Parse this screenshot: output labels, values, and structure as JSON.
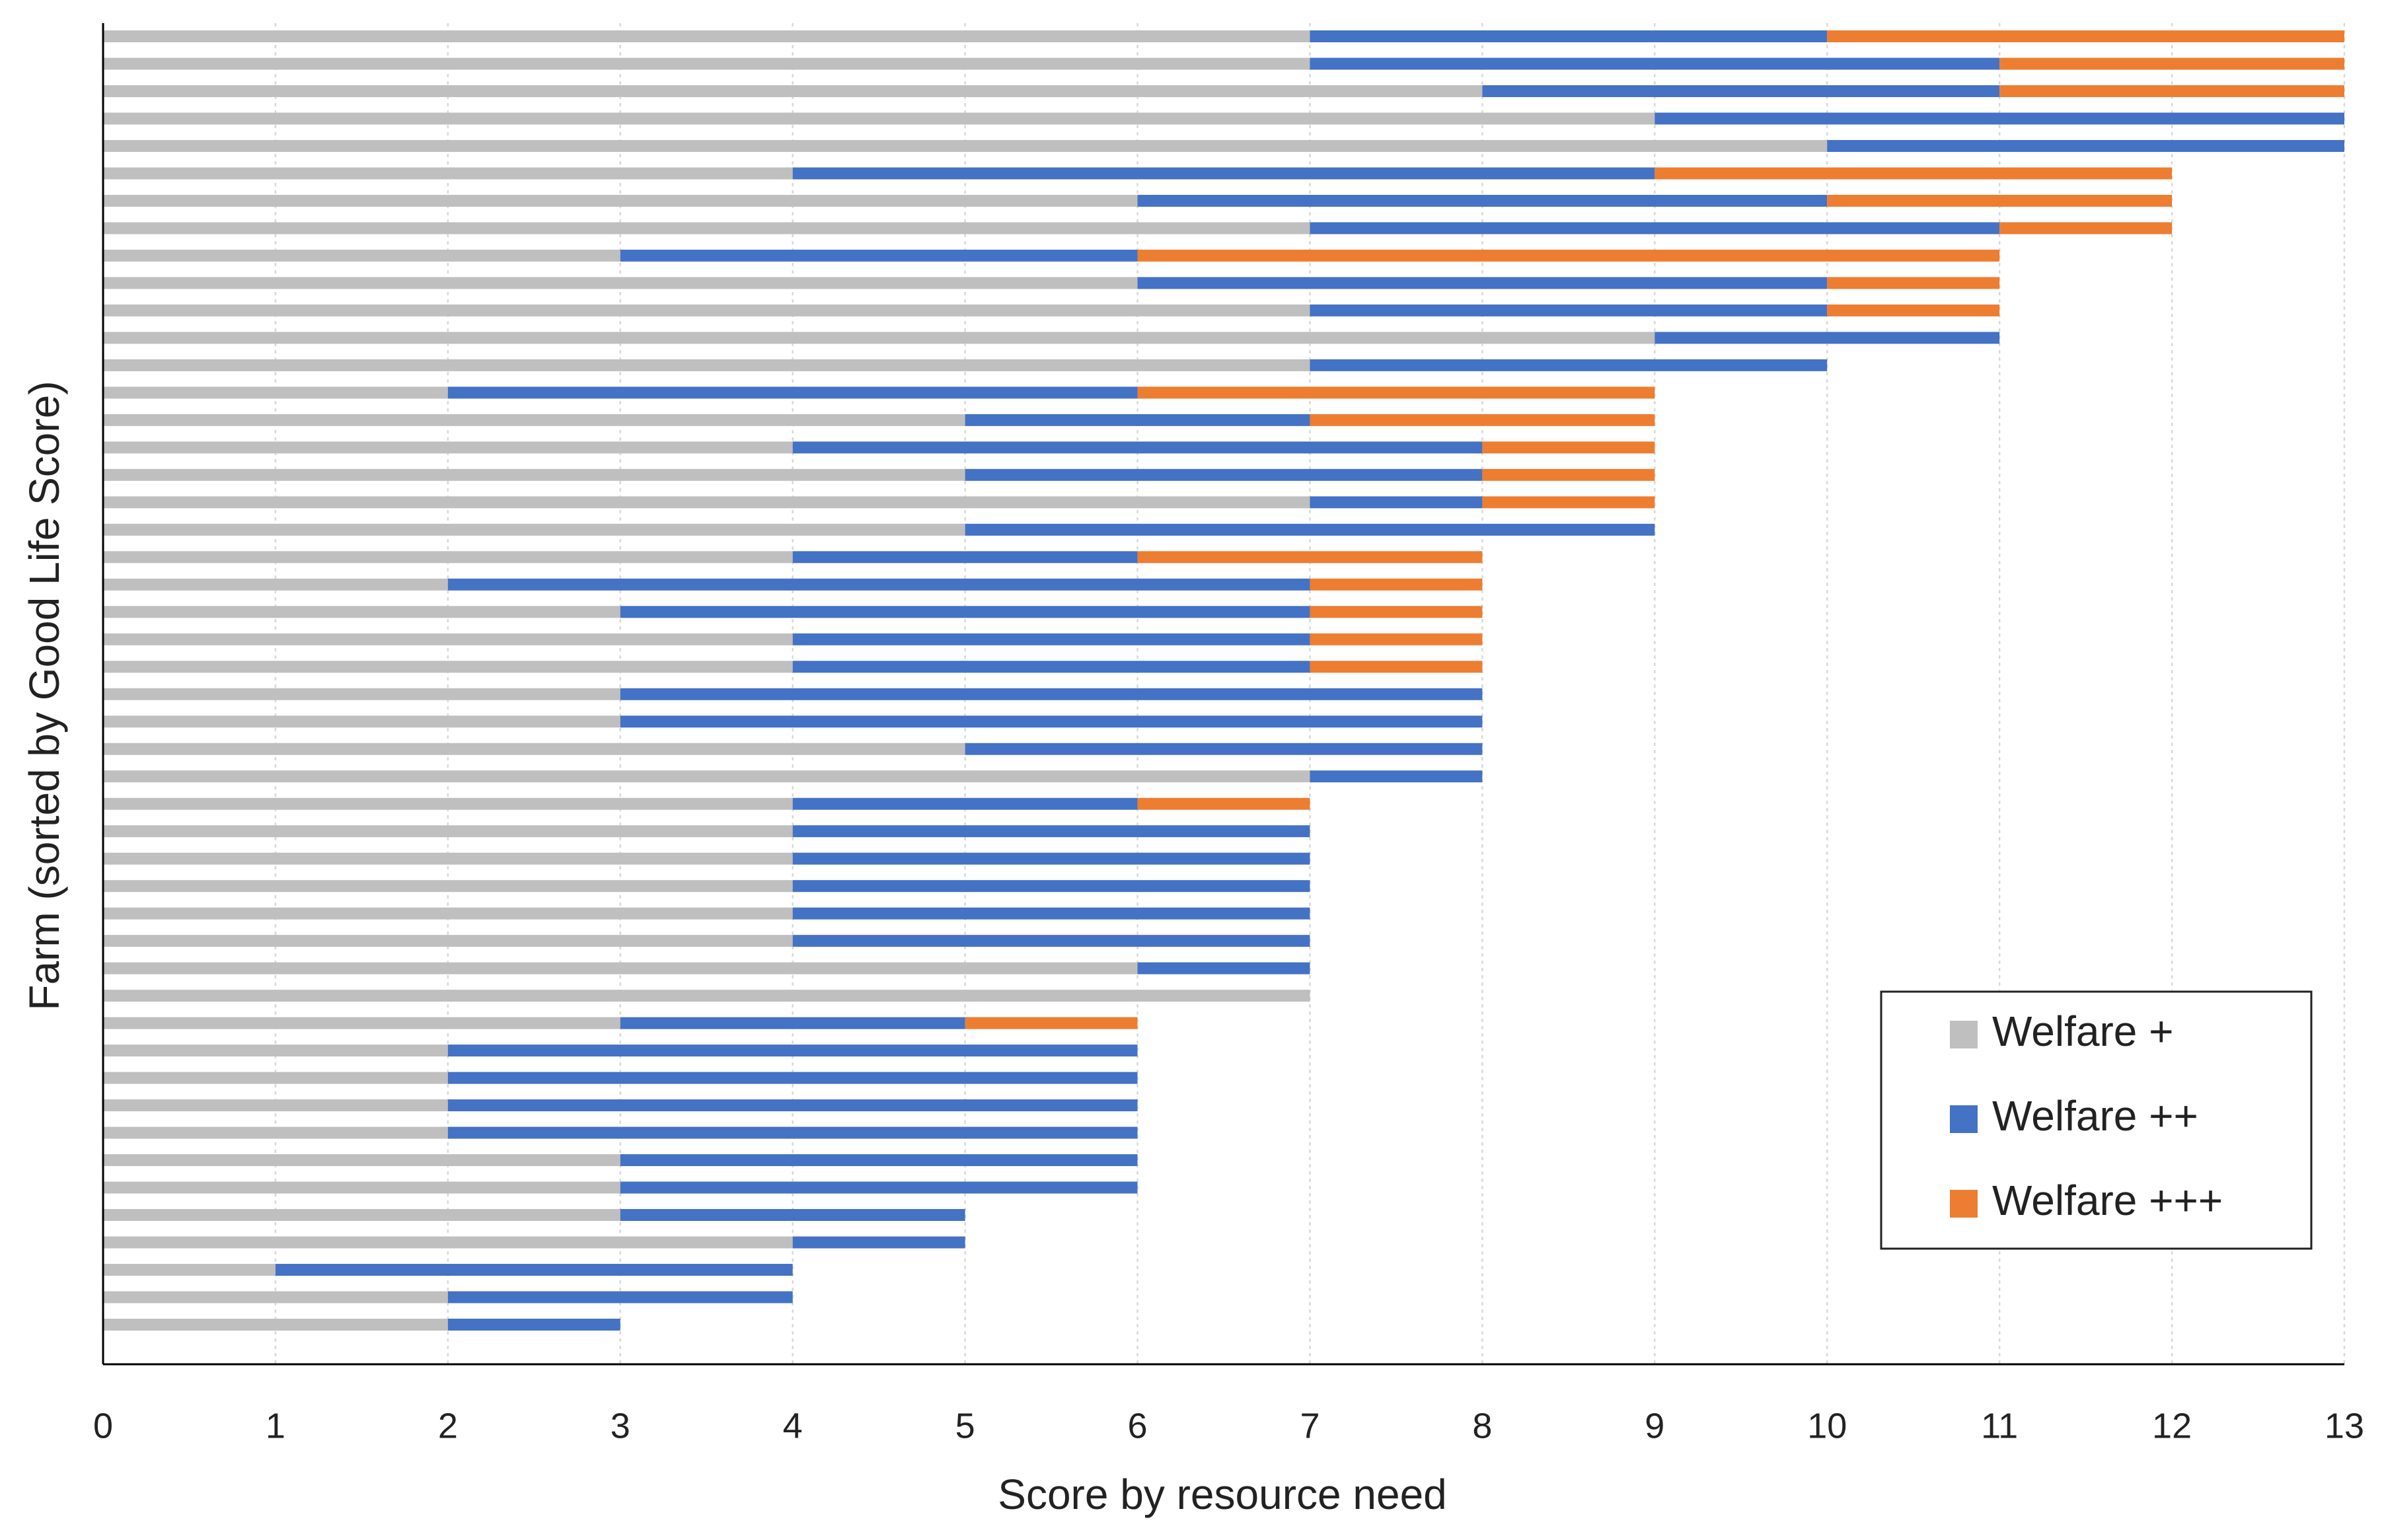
{
  "chart_data": {
    "type": "bar",
    "orientation": "horizontal",
    "stacked": true,
    "xlabel": "Score by resource need",
    "ylabel": "Farm (sorted by Good Life Score)",
    "categories": [
      null,
      null,
      null,
      null,
      null,
      null,
      null,
      null,
      null,
      null,
      null,
      null,
      null,
      null,
      null,
      null,
      null,
      null,
      null,
      null,
      null,
      null,
      null,
      null,
      null,
      null,
      null,
      null,
      null,
      null,
      null,
      null,
      null,
      null,
      null,
      null,
      null,
      null,
      null,
      null,
      null,
      null,
      null,
      null,
      null,
      null,
      null,
      null
    ],
    "series": [
      {
        "name": "Welfare +",
        "color": "#bfbfbf",
        "values": [
          7,
          7,
          8,
          9,
          10,
          4,
          6,
          7,
          3,
          6,
          7,
          9,
          7,
          2,
          5,
          4,
          5,
          7,
          5,
          4,
          2,
          3,
          4,
          4,
          3,
          3,
          5,
          7,
          4,
          4,
          4,
          4,
          4,
          4,
          6,
          7,
          3,
          2,
          2,
          2,
          2,
          3,
          3,
          3,
          4,
          1,
          2,
          2
        ]
      },
      {
        "name": "Welfare ++",
        "color": "#4472c4",
        "values": [
          3,
          4,
          3,
          4,
          3,
          5,
          4,
          4,
          3,
          4,
          3,
          2,
          3,
          4,
          2,
          4,
          3,
          1,
          4,
          2,
          5,
          4,
          3,
          3,
          5,
          5,
          3,
          1,
          2,
          3,
          3,
          3,
          3,
          3,
          1,
          0,
          2,
          4,
          4,
          4,
          4,
          3,
          3,
          2,
          1,
          3,
          2,
          1
        ]
      },
      {
        "name": "Welfare +++",
        "color": "#ed7d31",
        "values": [
          3,
          2,
          2,
          0,
          0,
          3,
          2,
          1,
          5,
          1,
          1,
          0,
          0,
          3,
          2,
          1,
          1,
          1,
          0,
          2,
          1,
          1,
          1,
          1,
          0,
          0,
          0,
          0,
          1,
          0,
          0,
          0,
          0,
          0,
          0,
          0,
          1,
          0,
          0,
          0,
          0,
          0,
          0,
          0,
          0,
          0,
          0,
          0
        ]
      }
    ],
    "xlim": [
      0,
      13
    ],
    "xticks": [
      0,
      1,
      2,
      3,
      4,
      5,
      6,
      7,
      8,
      9,
      10,
      11,
      12,
      13
    ],
    "grid": true,
    "legend": "lower right"
  }
}
